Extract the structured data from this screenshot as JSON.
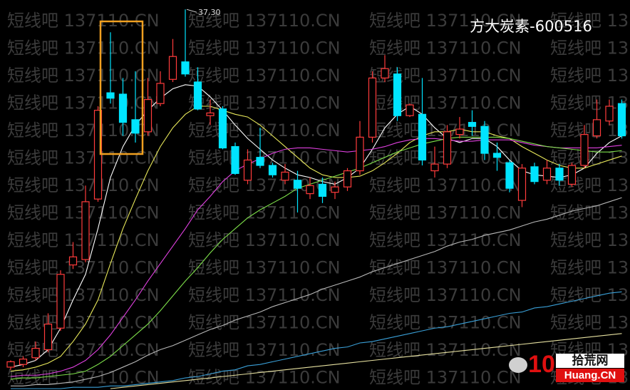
{
  "chart_data": {
    "type": "candlestick",
    "title": "方大炭素-600516",
    "watermark": "短线吧 137110.CN",
    "up_color": "#ff3b3b",
    "down_color": "#00e4ff",
    "ylim": [
      9,
      38
    ],
    "max_label": {
      "value": 37.3,
      "label": "37.30"
    },
    "open": [
      10.7,
      10.9,
      11.4,
      12.0,
      13.6,
      18.3,
      18.7,
      23.2,
      31.1,
      31.0,
      29.1,
      28.2,
      30.3,
      32.1,
      33.4,
      31.9,
      29.4,
      29.9,
      27.1,
      24.6,
      26.3,
      25.7,
      24.6,
      24.6,
      23.6,
      24.3,
      23.7,
      24.1,
      25.3,
      27.8,
      32.2,
      32.5,
      29.4,
      29.5,
      25.3,
      25.8,
      28.0,
      28.9,
      28.6,
      26.6,
      25.9,
      23.1,
      25.6,
      24.6,
      25.5,
      24.3,
      25.7,
      27.9,
      29.0,
      30.3
    ],
    "high": [
      11.2,
      11.5,
      12.6,
      14.7,
      17.9,
      20.0,
      24.2,
      30.1,
      35.6,
      32.2,
      32.7,
      32.2,
      32.7,
      35.1,
      37.3,
      33.0,
      30.6,
      30.1,
      27.4,
      26.9,
      28.5,
      25.9,
      25.8,
      25.3,
      24.8,
      24.8,
      24.5,
      25.5,
      29.0,
      32.7,
      33.9,
      33.0,
      30.3,
      32.2,
      27.1,
      28.7,
      29.3,
      29.8,
      29.0,
      27.4,
      26.1,
      25.8,
      25.9,
      26.1,
      25.8,
      25.9,
      28.7,
      30.6,
      30.6,
      30.6
    ],
    "low": [
      10.5,
      10.7,
      11.2,
      11.8,
      13.4,
      18.0,
      18.5,
      23.0,
      30.3,
      27.9,
      27.4,
      27.9,
      30.1,
      31.9,
      32.3,
      29.8,
      28.7,
      26.9,
      25.0,
      24.3,
      25.5,
      24.8,
      24.3,
      22.2,
      23.2,
      22.9,
      23.2,
      23.8,
      25.0,
      27.4,
      31.9,
      29.0,
      29.3,
      25.7,
      24.8,
      25.5,
      27.7,
      27.9,
      26.1,
      25.3,
      23.7,
      22.6,
      24.3,
      24.3,
      24.2,
      24.1,
      25.5,
      27.7,
      28.7,
      27.7
    ],
    "close": [
      11.1,
      11.3,
      12.1,
      13.9,
      17.6,
      18.9,
      23.0,
      29.8,
      30.7,
      28.9,
      28.1,
      30.6,
      31.8,
      33.8,
      32.5,
      29.9,
      29.6,
      27.0,
      25.1,
      26.1,
      25.7,
      25.0,
      25.2,
      24.0,
      24.2,
      23.4,
      24.1,
      25.3,
      27.8,
      32.2,
      32.9,
      29.4,
      30.2,
      26.1,
      25.8,
      28.2,
      28.4,
      28.6,
      26.6,
      26.3,
      24.0,
      25.5,
      24.5,
      25.5,
      24.6,
      25.7,
      28.0,
      29.1,
      30.1,
      27.9
    ],
    "series": [
      {
        "color": "#ffffff",
        "values": [
          10.7,
          10.9,
          11.2,
          12.0,
          13.6,
          15.7,
          17.6,
          21.0,
          24.8,
          27.1,
          28.7,
          29.8,
          30.7,
          31.4,
          31.7,
          31.6,
          30.8,
          29.8,
          28.7,
          27.7,
          26.9,
          26.1,
          25.5,
          25.0,
          24.8,
          24.5,
          24.3,
          24.8,
          25.5,
          26.9,
          28.5,
          29.5,
          30.1,
          29.5,
          28.5,
          27.7,
          27.4,
          27.7,
          27.7,
          27.1,
          26.1,
          25.3,
          25.0,
          24.9,
          24.8,
          25.0,
          25.5,
          26.6,
          27.4,
          27.9
        ]
      },
      {
        "color": "#e8e85a",
        "values": [
          10.4,
          10.5,
          10.7,
          11.0,
          11.5,
          12.6,
          13.9,
          15.7,
          18.4,
          21.0,
          23.2,
          25.3,
          27.1,
          28.5,
          29.5,
          30.1,
          30.1,
          29.8,
          29.5,
          29.3,
          28.7,
          27.9,
          27.1,
          26.3,
          25.5,
          25.0,
          24.8,
          24.8,
          24.9,
          25.3,
          25.9,
          26.6,
          27.4,
          27.9,
          28.2,
          28.2,
          28.4,
          28.2,
          28.2,
          27.9,
          27.7,
          27.1,
          26.6,
          26.1,
          25.7,
          25.5,
          25.5,
          25.8,
          26.1,
          26.4
        ]
      },
      {
        "color": "#e040e0",
        "values": [
          10.0,
          10.1,
          10.1,
          10.2,
          10.4,
          10.7,
          11.2,
          12.0,
          13.1,
          14.4,
          15.7,
          17.1,
          18.4,
          19.7,
          21.0,
          22.4,
          23.4,
          24.5,
          25.3,
          25.8,
          26.2,
          26.6,
          26.9,
          27.0,
          27.0,
          26.9,
          26.8,
          26.7,
          26.8,
          26.9,
          27.1,
          27.4,
          27.6,
          27.7,
          27.7,
          27.6,
          27.5,
          27.5,
          27.6,
          27.6,
          27.6,
          27.4,
          27.2,
          27.1,
          27.0,
          27.0,
          27.0,
          27.0,
          27.1,
          27.2
        ]
      },
      {
        "color": "#7ee04a",
        "values": [
          9.8,
          9.9,
          9.9,
          10.0,
          10.1,
          10.2,
          10.4,
          10.9,
          11.5,
          12.3,
          13.1,
          13.9,
          14.9,
          16.0,
          17.1,
          18.1,
          19.2,
          20.2,
          21.0,
          21.8,
          22.4,
          22.9,
          23.4,
          24.0,
          24.3,
          24.6,
          24.9,
          25.2,
          25.5,
          25.9,
          26.3,
          26.7,
          27.0,
          27.3,
          27.5,
          27.7,
          27.8,
          27.8,
          27.8,
          27.8,
          27.7,
          27.5,
          27.3,
          27.1,
          27.0,
          26.9,
          26.8,
          26.7,
          26.7,
          26.8
        ]
      },
      {
        "color": "#b8b8b8",
        "values": [
          9.3,
          9.3,
          9.4,
          9.4,
          9.5,
          9.6,
          9.8,
          10.0,
          10.3,
          10.7,
          11.1,
          11.6,
          12.0,
          12.3,
          12.7,
          13.1,
          13.5,
          13.8,
          14.2,
          14.5,
          14.8,
          15.2,
          15.5,
          15.8,
          16.1,
          16.5,
          16.8,
          17.1,
          17.4,
          17.8,
          18.1,
          18.4,
          18.7,
          19.0,
          19.3,
          19.7,
          20.0,
          20.2,
          20.5,
          20.7,
          20.9,
          21.2,
          21.5,
          21.7,
          22.0,
          22.3,
          22.5,
          22.7,
          23.0,
          23.3
        ]
      },
      {
        "color": "#3aa0d8",
        "values": [
          9.1,
          9.1,
          9.1,
          9.1,
          9.1,
          9.2,
          9.2,
          9.2,
          9.3,
          9.3,
          9.4,
          9.5,
          9.6,
          9.7,
          9.9,
          10.0,
          10.2,
          10.4,
          10.5,
          10.8,
          10.9,
          11.1,
          11.3,
          11.5,
          11.7,
          11.9,
          12.1,
          12.2,
          12.5,
          12.6,
          12.8,
          13.0,
          13.2,
          13.4,
          13.6,
          13.7,
          13.9,
          14.1,
          14.3,
          14.5,
          14.7,
          14.8,
          15.1,
          15.2,
          15.4,
          15.6,
          15.8,
          16.0,
          16.2,
          16.3
        ]
      },
      {
        "color": "#e6e0a0",
        "values": [
          null,
          null,
          null,
          null,
          null,
          null,
          null,
          null,
          9.1,
          9.2,
          9.3,
          9.4,
          9.5,
          9.6,
          9.7,
          9.8,
          9.9,
          10.0,
          10.1,
          10.2,
          10.3,
          10.4,
          10.5,
          10.6,
          10.7,
          10.8,
          10.9,
          11.0,
          11.1,
          11.2,
          11.3,
          11.4,
          11.5,
          11.6,
          11.7,
          11.8,
          11.9,
          12.0,
          12.1,
          12.2,
          12.3,
          12.4,
          12.5,
          12.6,
          12.7,
          12.8,
          12.9,
          13.0,
          13.1,
          13.2
        ]
      }
    ]
  },
  "logo": {
    "number": "10",
    "name": "拾荒网",
    "domain": "Huang.CN"
  }
}
